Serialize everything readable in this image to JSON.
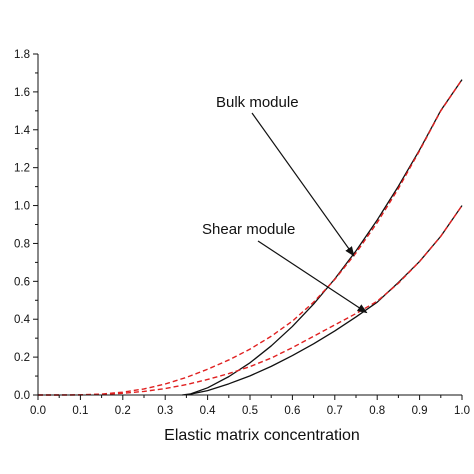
{
  "chart_data": {
    "type": "line",
    "xlabel": "Elastic matrix concentration",
    "ylabel": "",
    "xlim": [
      0.0,
      1.0
    ],
    "ylim": [
      0.0,
      1.8
    ],
    "xticks": [
      "0.0",
      "0.1",
      "0.2",
      "0.3",
      "0.4",
      "0.5",
      "0.6",
      "0.7",
      "0.8",
      "0.9",
      "1.0"
    ],
    "yticks": [
      "0.0",
      "0.2",
      "0.4",
      "0.6",
      "0.8",
      "1.0",
      "1.2",
      "1.4",
      "1.6",
      "1.8"
    ],
    "grid": false,
    "legend": "none",
    "colors": {
      "solid": "#111111",
      "dashed": "#e02020"
    },
    "series": [
      {
        "style": "solid",
        "color": "#111111",
        "x": [
          0.34,
          0.36,
          0.4,
          0.45,
          0.5,
          0.55,
          0.6,
          0.65,
          0.7,
          0.75,
          0.8,
          0.85,
          0.9,
          0.95,
          1.0
        ],
        "y": [
          0.0,
          0.006,
          0.038,
          0.097,
          0.17,
          0.259,
          0.362,
          0.48,
          0.613,
          0.761,
          0.924,
          1.102,
          1.294,
          1.502,
          1.665
        ]
      },
      {
        "style": "dashed",
        "color": "#e02020",
        "x": [
          0.0,
          0.05,
          0.1,
          0.15,
          0.2,
          0.25,
          0.3,
          0.35,
          0.4,
          0.45,
          0.5,
          0.55,
          0.6,
          0.65,
          0.7,
          0.75,
          0.8,
          0.85,
          0.9,
          0.95,
          1.0
        ],
        "y": [
          0.0,
          0.0,
          0.001,
          0.005,
          0.015,
          0.032,
          0.058,
          0.093,
          0.136,
          0.185,
          0.242,
          0.31,
          0.39,
          0.49,
          0.61,
          0.75,
          0.91,
          1.09,
          1.29,
          1.5,
          1.665
        ]
      },
      {
        "style": "solid",
        "color": "#111111",
        "x": [
          0.35,
          0.4,
          0.45,
          0.5,
          0.55,
          0.6,
          0.65,
          0.7,
          0.75,
          0.8,
          0.85,
          0.9,
          0.95,
          1.0
        ],
        "y": [
          0.0,
          0.023,
          0.059,
          0.101,
          0.151,
          0.208,
          0.27,
          0.338,
          0.412,
          0.49,
          0.594,
          0.705,
          0.838,
          1.0
        ]
      },
      {
        "style": "dashed",
        "color": "#e02020",
        "x": [
          0.0,
          0.05,
          0.1,
          0.15,
          0.2,
          0.25,
          0.3,
          0.35,
          0.4,
          0.45,
          0.5,
          0.55,
          0.6,
          0.65,
          0.7,
          0.75,
          0.8,
          0.85,
          0.9,
          0.95,
          1.0
        ],
        "y": [
          0.0,
          0.0,
          0.0,
          0.003,
          0.009,
          0.019,
          0.034,
          0.055,
          0.082,
          0.113,
          0.15,
          0.195,
          0.25,
          0.31,
          0.37,
          0.43,
          0.495,
          0.59,
          0.705,
          0.838,
          1.0
        ]
      }
    ],
    "annotations": [
      {
        "text": "Bulk module",
        "arrow_to": [
          0.745,
          0.735
        ]
      },
      {
        "text": "Shear module",
        "arrow_to": [
          0.775,
          0.435
        ]
      }
    ]
  }
}
